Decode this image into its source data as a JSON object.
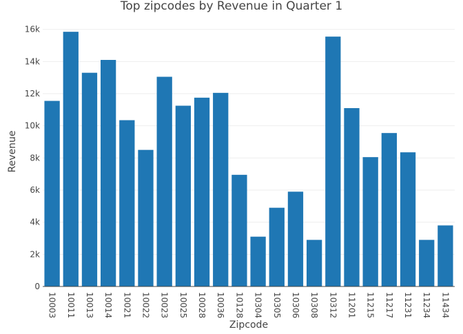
{
  "chart_data": {
    "type": "bar",
    "title": "Top zipcodes by Revenue in Quarter 1",
    "xlabel": "Zipcode",
    "ylabel": "Revenue",
    "ylim": [
      0,
      16800
    ],
    "yticks": [
      0,
      2000,
      4000,
      6000,
      8000,
      10000,
      12000,
      14000,
      16000
    ],
    "ytick_labels": [
      "0",
      "2k",
      "4k",
      "6k",
      "8k",
      "10k",
      "12k",
      "14k",
      "16k"
    ],
    "grid": true,
    "bar_color": "#1f77b4",
    "categories": [
      "10003",
      "10011",
      "10013",
      "10014",
      "10021",
      "10022",
      "10023",
      "10025",
      "10028",
      "10036",
      "10128",
      "10304",
      "10305",
      "10306",
      "10308",
      "10312",
      "11201",
      "11215",
      "11217",
      "11231",
      "11234",
      "11434"
    ],
    "values": [
      11550,
      15850,
      13300,
      14100,
      10350,
      8500,
      13050,
      11250,
      11750,
      12050,
      6950,
      3100,
      4900,
      5900,
      2900,
      15550,
      11100,
      8050,
      9550,
      8350,
      2900,
      3800
    ]
  }
}
